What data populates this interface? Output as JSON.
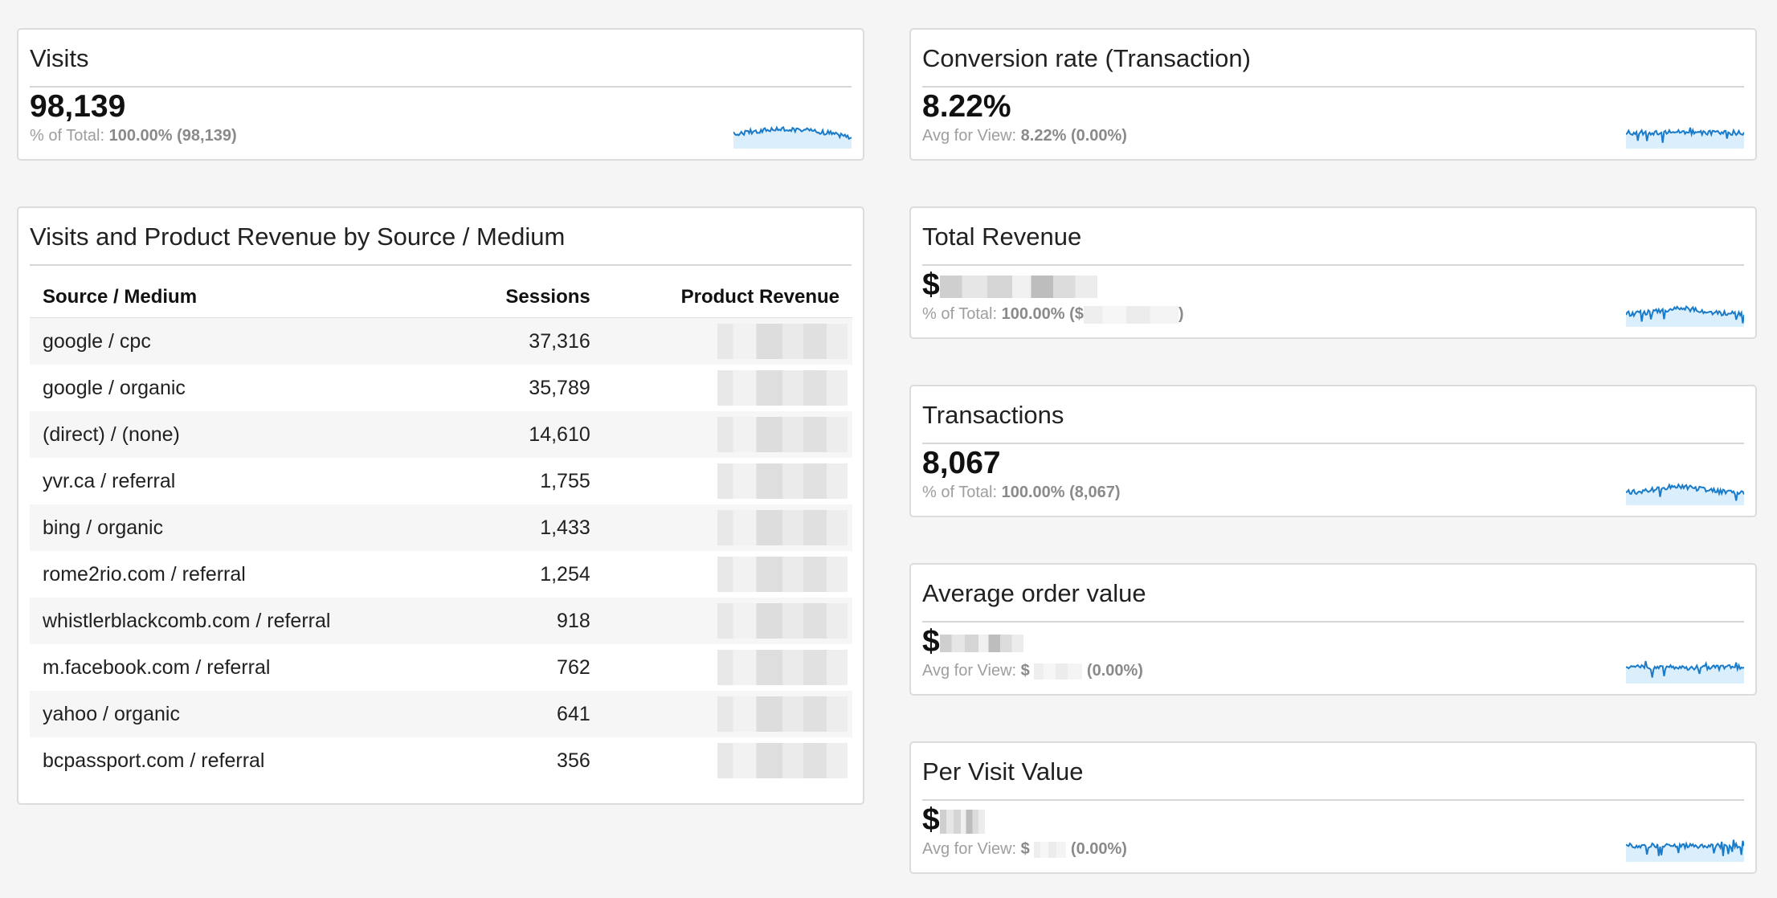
{
  "colors": {
    "spark_line": "#1a7bc9",
    "spark_fill": "#dbeefb"
  },
  "visits": {
    "title": "Visits",
    "value": "98,139",
    "sub_label": "% of Total:",
    "sub_value": "100.00% (98,139)"
  },
  "conversion": {
    "title": "Conversion rate (Transaction)",
    "value": "8.22%",
    "sub_label": "Avg for View:",
    "sub_value": "8.22% (0.00%)"
  },
  "total_revenue": {
    "title": "Total Revenue",
    "value_prefix": "$",
    "sub_label": "% of Total:",
    "sub_value": "100.00% ($",
    "sub_suffix": ")"
  },
  "transactions": {
    "title": "Transactions",
    "value": "8,067",
    "sub_label": "% of Total:",
    "sub_value": "100.00% (8,067)"
  },
  "avg_order": {
    "title": "Average order value",
    "value_prefix": "$",
    "sub_label": "Avg for View:",
    "sub_value_prefix": "$",
    "sub_value_suffix": "(0.00%)"
  },
  "per_visit": {
    "title": "Per Visit Value",
    "value_prefix": "$",
    "sub_label": "Avg for View:",
    "sub_value_prefix": "$",
    "sub_value_suffix": "(0.00%)"
  },
  "table": {
    "title": "Visits and Product Revenue by Source / Medium",
    "headers": [
      "Source / Medium",
      "Sessions",
      "Product Revenue"
    ],
    "rows": [
      {
        "source": "google / cpc",
        "sessions": "37,316"
      },
      {
        "source": "google / organic",
        "sessions": "35,789"
      },
      {
        "source": "(direct) / (none)",
        "sessions": "14,610"
      },
      {
        "source": "yvr.ca / referral",
        "sessions": "1,755"
      },
      {
        "source": "bing / organic",
        "sessions": "1,433"
      },
      {
        "source": "rome2rio.com / referral",
        "sessions": "1,254"
      },
      {
        "source": "whistlerblackcomb.com / referral",
        "sessions": "918"
      },
      {
        "source": "m.facebook.com / referral",
        "sessions": "762"
      },
      {
        "source": "yahoo / organic",
        "sessions": "641"
      },
      {
        "source": "bcpassport.com / referral",
        "sessions": "356"
      }
    ]
  }
}
